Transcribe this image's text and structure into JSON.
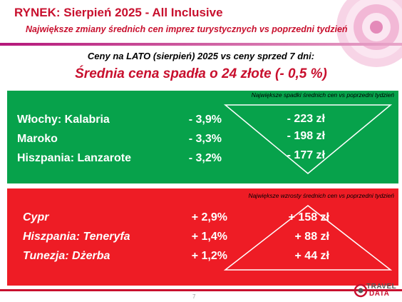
{
  "header": {
    "title": "RYNEK: Sierpień 2025 - All Inclusive",
    "subtitle": "Największe zmiany średnich cen imprez turystycznych vs poprzedni tydzień"
  },
  "summary": {
    "compare_text": "Ceny na LATO (sierpień) 2025 vs ceny sprzed 7 dni:",
    "average_text": "Średnia cena spadła o 24 złote (- 0,5 %)"
  },
  "decreases": {
    "caption": "Największe spadki średnich cen vs poprzedni tydzień",
    "rows": [
      {
        "label": "Włochy: Kalabria",
        "pct": "-  3,9%",
        "amount": "- 223 zł"
      },
      {
        "label": "Maroko",
        "pct": "-  3,3%",
        "amount": "- 198 zł"
      },
      {
        "label": "Hiszpania: Lanzarote",
        "pct": "-  3,2%",
        "amount": "- 177 zł"
      }
    ]
  },
  "increases": {
    "caption": "Największe wzrosty średnich cen vs poprzedni tydzień",
    "rows": [
      {
        "label": "Cypr",
        "pct": "+ 2,9%",
        "amount": "+ 158 zł"
      },
      {
        "label": "Hiszpania: Teneryfa",
        "pct": "+ 1,4%",
        "amount": "+ 88 zł"
      },
      {
        "label": "Tunezja: Dżerba",
        "pct": "+ 1,2%",
        "amount": "+ 44 zł"
      }
    ]
  },
  "footer": {
    "page_number": "7",
    "logo_line1": "TRAVEL",
    "logo_line2": "DATA"
  },
  "colors": {
    "accent_red": "#c8102e",
    "green_panel": "#07a24b",
    "red_panel": "#ee1c25",
    "magenta": "#b5177a"
  }
}
